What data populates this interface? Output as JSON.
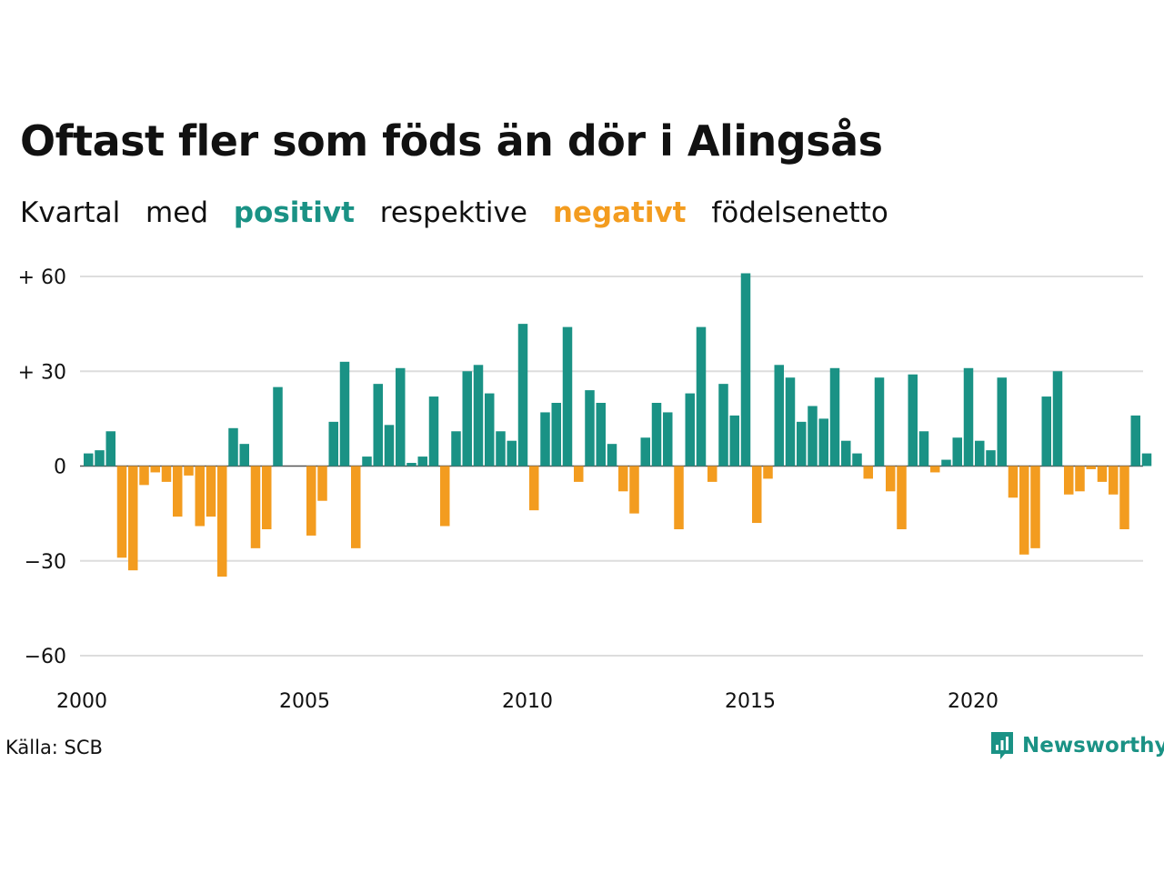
{
  "title": "Oftast fler som föds än dör i Alingsås",
  "subtitle": {
    "w1": "Kvartal",
    "w2": "med",
    "positive": "positivt",
    "w3": "respektive",
    "negative": "negativt",
    "w4": "födelsenetto"
  },
  "colors": {
    "positive": "#1a9285",
    "negative": "#f39c1f",
    "grid": "#dddddd",
    "text": "#111111"
  },
  "source": "Källa: SCB",
  "brand": {
    "name": "Newsworthy",
    "icon": "newsworthy-logo-icon"
  },
  "chart_data": {
    "type": "bar",
    "start_year": 2000,
    "x_tick_labels": [
      "2000",
      "2005",
      "2010",
      "2015",
      "2020"
    ],
    "y_tick_labels": [
      "+ 60",
      "+ 30",
      "0",
      "−30",
      "−60"
    ],
    "y_ticks": [
      60,
      30,
      0,
      -30,
      -60
    ],
    "ylim": [
      -60,
      60
    ],
    "grid": true,
    "categories": [
      "2000 K1",
      "2000 K2",
      "2000 K3",
      "2000 K4",
      "2001 K1",
      "2001 K2",
      "2001 K3",
      "2001 K4",
      "2002 K1",
      "2002 K2",
      "2002 K3",
      "2002 K4",
      "2003 K1",
      "2003 K2",
      "2003 K3",
      "2003 K4",
      "2004 K1",
      "2004 K2",
      "2004 K3",
      "2004 K4",
      "2005 K1",
      "2005 K2",
      "2005 K3",
      "2005 K4",
      "2006 K1",
      "2006 K2",
      "2006 K3",
      "2006 K4",
      "2007 K1",
      "2007 K2",
      "2007 K3",
      "2007 K4",
      "2008 K1",
      "2008 K2",
      "2008 K3",
      "2008 K4",
      "2009 K1",
      "2009 K2",
      "2009 K3",
      "2009 K4",
      "2010 K1",
      "2010 K2",
      "2010 K3",
      "2010 K4",
      "2011 K1",
      "2011 K2",
      "2011 K3",
      "2011 K4",
      "2012 K1",
      "2012 K2",
      "2012 K3",
      "2012 K4",
      "2013 K1",
      "2013 K2",
      "2013 K3",
      "2013 K4",
      "2014 K1",
      "2014 K2",
      "2014 K3",
      "2014 K4",
      "2015 K1",
      "2015 K2",
      "2015 K3",
      "2015 K4",
      "2016 K1",
      "2016 K2",
      "2016 K3",
      "2016 K4",
      "2017 K1",
      "2017 K2",
      "2017 K3",
      "2017 K4",
      "2018 K1",
      "2018 K2",
      "2018 K3",
      "2018 K4",
      "2019 K1",
      "2019 K2",
      "2019 K3",
      "2019 K4",
      "2020 K1",
      "2020 K2",
      "2020 K3",
      "2020 K4",
      "2021 K1",
      "2021 K2",
      "2021 K3",
      "2021 K4",
      "2022 K1",
      "2022 K2",
      "2022 K3",
      "2022 K4",
      "2023 K1",
      "2023 K2",
      "2023 K3",
      "2023 K4"
    ],
    "values": [
      4,
      5,
      11,
      -29,
      -33,
      -6,
      -2,
      -5,
      -16,
      -3,
      -19,
      -16,
      -35,
      12,
      7,
      -26,
      -20,
      25,
      0,
      0,
      -22,
      -11,
      14,
      33,
      -26,
      3,
      26,
      13,
      31,
      1,
      3,
      22,
      -19,
      11,
      30,
      32,
      23,
      11,
      8,
      45,
      -14,
      17,
      20,
      44,
      -5,
      24,
      20,
      7,
      -8,
      -15,
      9,
      20,
      17,
      -20,
      23,
      44,
      -5,
      26,
      16,
      61,
      -18,
      -4,
      32,
      28,
      14,
      19,
      15,
      31,
      8,
      4,
      -4,
      28,
      -8,
      -20,
      29,
      11,
      -2,
      2,
      9,
      31,
      8,
      5,
      28,
      -10,
      -28,
      -26,
      22,
      30,
      -9,
      -8,
      -1,
      -5,
      -9,
      -20,
      16,
      4
    ]
  }
}
